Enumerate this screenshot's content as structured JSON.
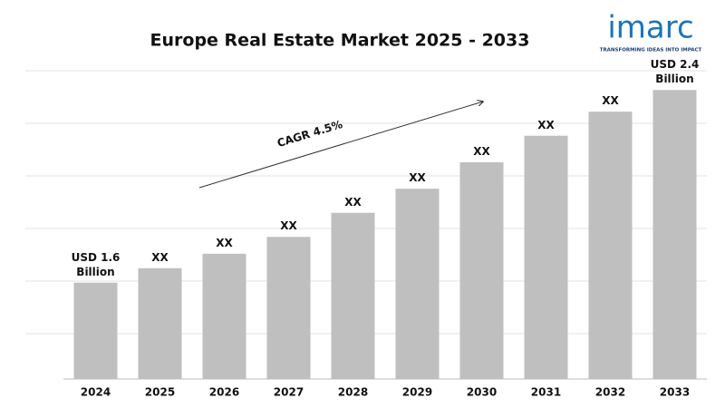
{
  "chart_data": {
    "type": "bar",
    "title": "Europe Real Estate Market 2025 - 2033",
    "categories": [
      "2024",
      "2025",
      "2026",
      "2027",
      "2028",
      "2029",
      "2030",
      "2031",
      "2032",
      "2033"
    ],
    "values": [
      1.6,
      1.66,
      1.72,
      1.79,
      1.89,
      1.99,
      2.1,
      2.21,
      2.31,
      2.4
    ],
    "value_labels": [
      "USD 1.6 Billion",
      "XX",
      "XX",
      "XX",
      "XX",
      "XX",
      "XX",
      "XX",
      "XX",
      "USD 2.4 Billion"
    ],
    "color": "#bfbfbf",
    "ylim": [
      1.2,
      2.48
    ],
    "annotations": [
      "CAGR 4.5%"
    ],
    "logo": {
      "name": "imarc",
      "tagline": "TRANSFORMING IDEAS INTO IMPACT"
    }
  }
}
